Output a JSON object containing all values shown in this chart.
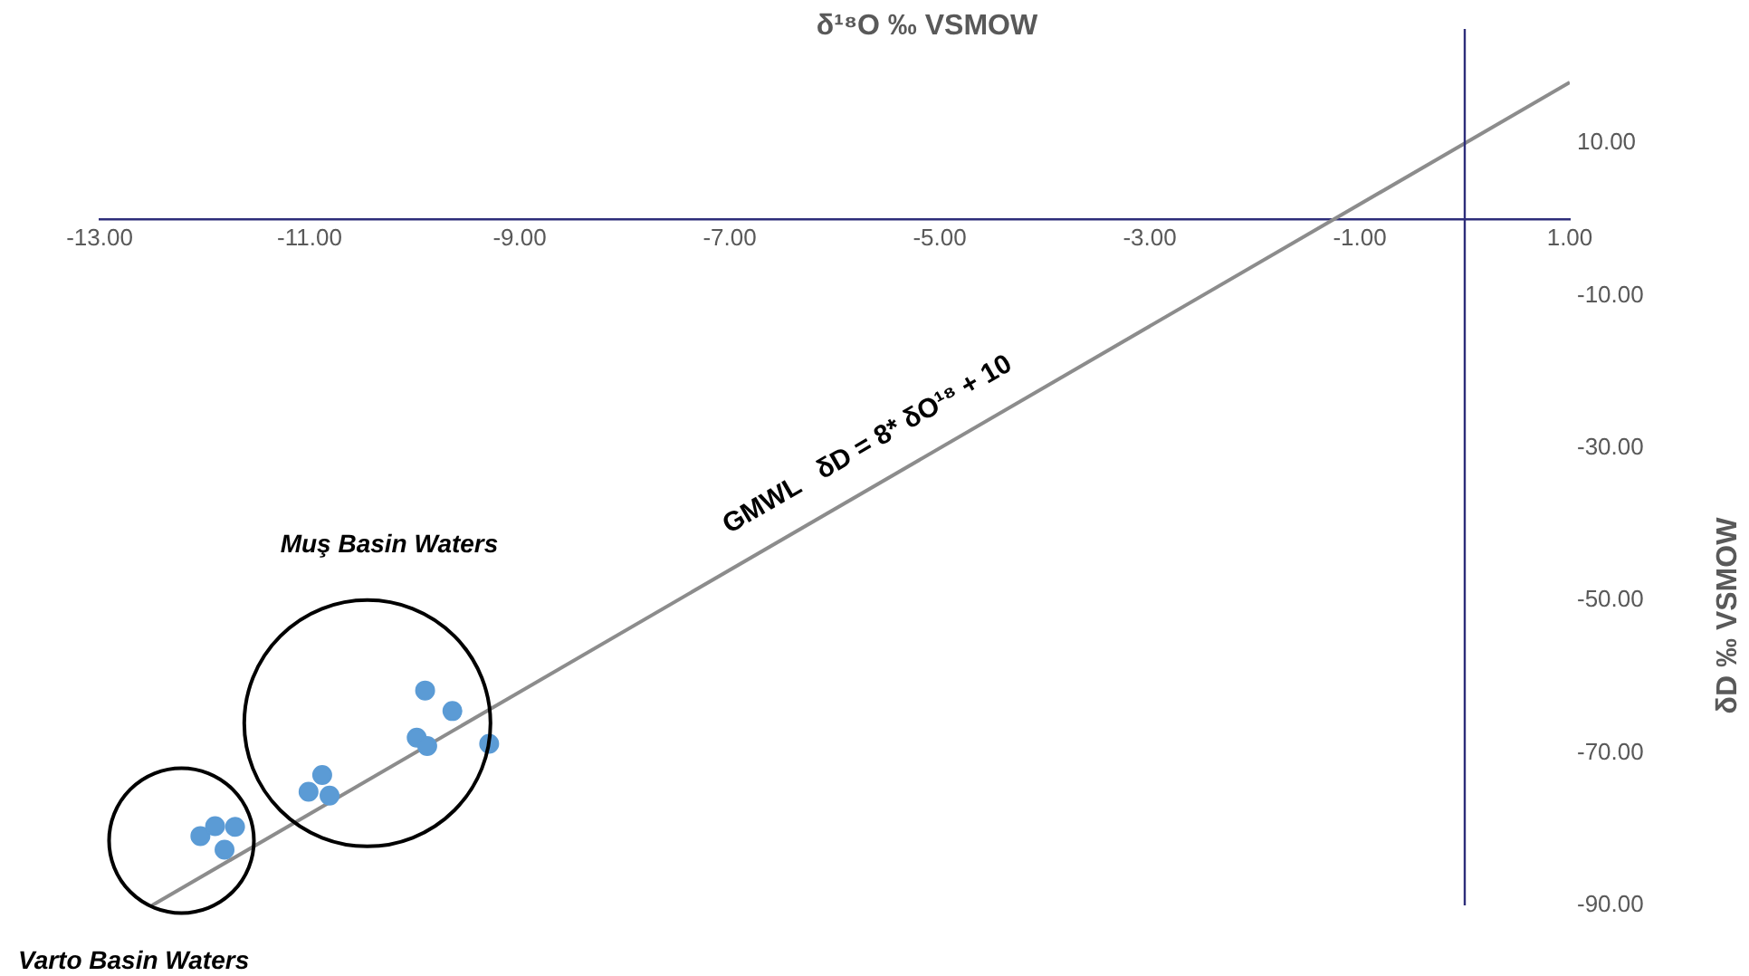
{
  "chart_data": {
    "type": "scatter",
    "xlabel": "δ¹⁸O ‰ VSMOW",
    "ylabel": "δD ‰ VSMOW",
    "xlim": [
      -13,
      1
    ],
    "ylim": [
      -90,
      25
    ],
    "xticks": [
      {
        "value": -13,
        "label": "-13.00"
      },
      {
        "value": -11,
        "label": "-11.00"
      },
      {
        "value": -9,
        "label": "-9.00"
      },
      {
        "value": -7,
        "label": "-7.00"
      },
      {
        "value": -5,
        "label": "-5.00"
      },
      {
        "value": -3,
        "label": "-3.00"
      },
      {
        "value": -1,
        "label": "-1.00"
      },
      {
        "value": 1,
        "label": "1.00"
      }
    ],
    "yticks": [
      {
        "value": -90,
        "label": "-90.00"
      },
      {
        "value": -70,
        "label": "-70.00"
      },
      {
        "value": -50,
        "label": "-50.00"
      },
      {
        "value": -30,
        "label": "-30.00"
      },
      {
        "value": -10,
        "label": "-10.00"
      },
      {
        "value": 10,
        "label": "10.00"
      }
    ],
    "grid": false,
    "legend": false,
    "marker": "circle",
    "series": [
      {
        "color": "#5b9bd5",
        "x": [
          -9.9,
          -9.64,
          -9.98,
          -9.88,
          -9.29,
          -10.88,
          -11.01,
          -10.81,
          -12.04,
          -11.9,
          -11.71,
          -11.81
        ],
        "values": [
          -61.8,
          -64.5,
          -68.0,
          -69.1,
          -68.8,
          -72.9,
          -75.1,
          -75.6,
          -80.9,
          -79.6,
          -79.7,
          -82.7
        ]
      },
      {
        "type": "line",
        "color": "#8c8c8c",
        "x": [
          -12.5,
          1
        ],
        "values": [
          -90,
          18
        ],
        "marker": "none"
      }
    ],
    "ref_lines": [
      {
        "axis": "x",
        "value": 0,
        "color": "#2e2e7a"
      }
    ],
    "annotations": [
      {
        "text": "GMWL   δD = 8* δO¹⁸ + 10",
        "x": -5.5,
        "y": -34
      },
      "Muş Basin Waters",
      "Varto Basin Waters"
    ]
  }
}
